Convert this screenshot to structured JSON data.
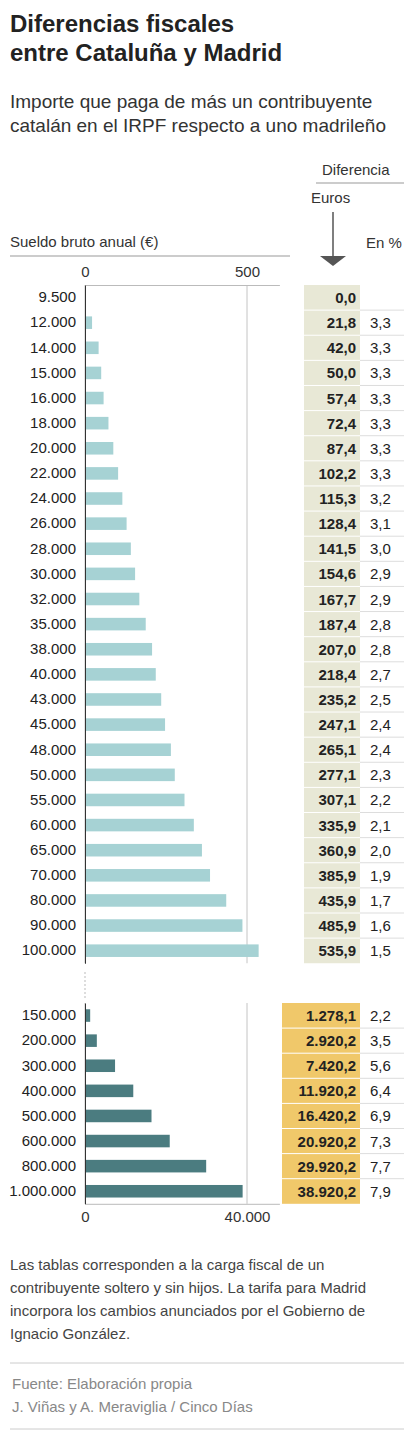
{
  "title": "Diferencias fiscales entre Cataluña y Madrid",
  "subtitle": "Importe que paga de más un contribuyente catalán en el IRPF respecto a uno madrileño",
  "note": "Las tablas corresponden a la carga fiscal de un contribuyente soltero y sin hijos. La tarifa para Madrid incorpora los cambios anunciados por el Gobierno de Ignacio González.",
  "source": "Fuente: Elaboración propia",
  "credit": "J. Viñas y A. Meraviglia / Cinco Días",
  "chart_data": [
    {
      "type": "bar",
      "orientation": "horizontal",
      "x_label": "Sueldo bruto anual (€)",
      "group_header": "Diferencia",
      "value_header": "Euros",
      "percent_header": "En %",
      "categories": [
        "9.500",
        "12.000",
        "14.000",
        "15.000",
        "16.000",
        "18.000",
        "20.000",
        "22.000",
        "24.000",
        "26.000",
        "28.000",
        "30.000",
        "32.000",
        "35.000",
        "38.000",
        "40.000",
        "43.000",
        "45.000",
        "48.000",
        "50.000",
        "55.000",
        "60.000",
        "65.000",
        "70.000",
        "80.000",
        "90.000",
        "100.000"
      ],
      "values": [
        0.0,
        21.8,
        42.0,
        50.0,
        57.4,
        72.4,
        87.4,
        102.2,
        115.3,
        128.4,
        141.5,
        154.6,
        167.7,
        187.4,
        207.0,
        218.4,
        235.2,
        247.1,
        265.1,
        277.1,
        307.1,
        335.9,
        360.9,
        385.9,
        435.9,
        485.9,
        535.9
      ],
      "value_labels": [
        "0,0",
        "21,8",
        "42,0",
        "50,0",
        "57,4",
        "72,4",
        "87,4",
        "102,2",
        "115,3",
        "128,4",
        "141,5",
        "154,6",
        "167,7",
        "187,4",
        "207,0",
        "218,4",
        "235,2",
        "247,1",
        "265,1",
        "277,1",
        "307,1",
        "335,9",
        "360,9",
        "385,9",
        "435,9",
        "485,9",
        "535,9"
      ],
      "percent_values": [
        null,
        3.3,
        3.3,
        3.3,
        3.3,
        3.3,
        3.3,
        3.3,
        3.2,
        3.1,
        3.0,
        2.9,
        2.9,
        2.8,
        2.8,
        2.7,
        2.5,
        2.4,
        2.4,
        2.3,
        2.2,
        2.1,
        2.0,
        1.9,
        1.7,
        1.6,
        1.5
      ],
      "percent_labels": [
        null,
        "3,3",
        "3,3",
        "3,3",
        "3,3",
        "3,3",
        "3,3",
        "3,3",
        "3,2",
        "3,1",
        "3,0",
        "2,9",
        "2,9",
        "2,8",
        "2,8",
        "2,7",
        "2,5",
        "2,4",
        "2,4",
        "2,3",
        "2,2",
        "2,1",
        "2,0",
        "1,9",
        "1,7",
        "1,6",
        "1,5"
      ],
      "color": "#a6d2d4",
      "xlim": [
        0,
        600
      ],
      "xticks": [
        0,
        500
      ],
      "grid": true,
      "data_labels": true
    },
    {
      "type": "bar",
      "orientation": "horizontal",
      "categories": [
        "150.000",
        "200.000",
        "300.000",
        "400.000",
        "500.000",
        "600.000",
        "800.000",
        "1.000.000"
      ],
      "values": [
        1278.1,
        2920.2,
        7420.2,
        11920.2,
        16420.2,
        20920.2,
        29920.2,
        38920.2
      ],
      "value_labels": [
        "1.278,1",
        "2.920,2",
        "7.420,2",
        "11.920,2",
        "16.420,2",
        "20.920,2",
        "29.920,2",
        "38.920,2"
      ],
      "percent_values": [
        2.2,
        3.5,
        5.6,
        6.4,
        6.9,
        7.3,
        7.7,
        7.9
      ],
      "percent_labels": [
        "2,2",
        "3,5",
        "5,6",
        "6,4",
        "6,9",
        "7,3",
        "7,7",
        "7,9"
      ],
      "color": "#4b7c80",
      "xlim": [
        0,
        48000
      ],
      "xticks": [
        0,
        {
          "value": 40000,
          "label": "40.000"
        }
      ],
      "grid": true,
      "data_labels": true
    }
  ]
}
